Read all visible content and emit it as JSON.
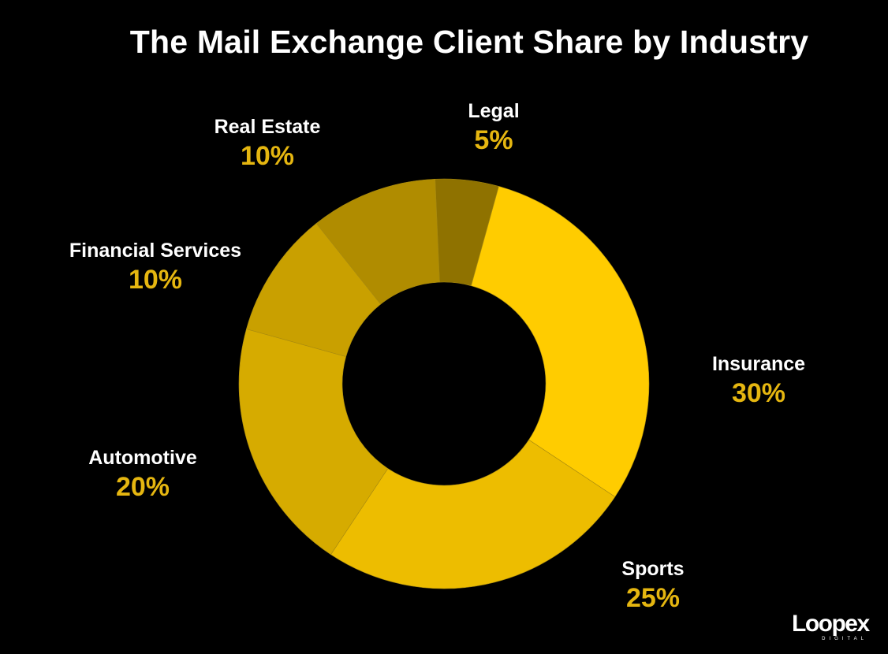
{
  "chart_data": {
    "type": "pie",
    "title": "The Mail Exchange Client Share by Industry",
    "unit": "%",
    "slices": [
      {
        "label": "Legal",
        "value": 5,
        "value_label": "5%",
        "color": "#8f7200"
      },
      {
        "label": "Insurance",
        "value": 30,
        "value_label": "30%",
        "color": "#ffcc00"
      },
      {
        "label": "Sports",
        "value": 25,
        "value_label": "25%",
        "color": "#edbd00"
      },
      {
        "label": "Automotive",
        "value": 20,
        "value_label": "20%",
        "color": "#d6ab00"
      },
      {
        "label": "Financial Services",
        "value": 10,
        "value_label": "10%",
        "color": "#c9a000"
      },
      {
        "label": "Real Estate",
        "value": 10,
        "value_label": "10%",
        "color": "#b08c00"
      }
    ],
    "label_value_color": "#e5b610",
    "hole": "donut"
  },
  "logo": {
    "name": "Loopex",
    "sub": "DIGITAL"
  }
}
